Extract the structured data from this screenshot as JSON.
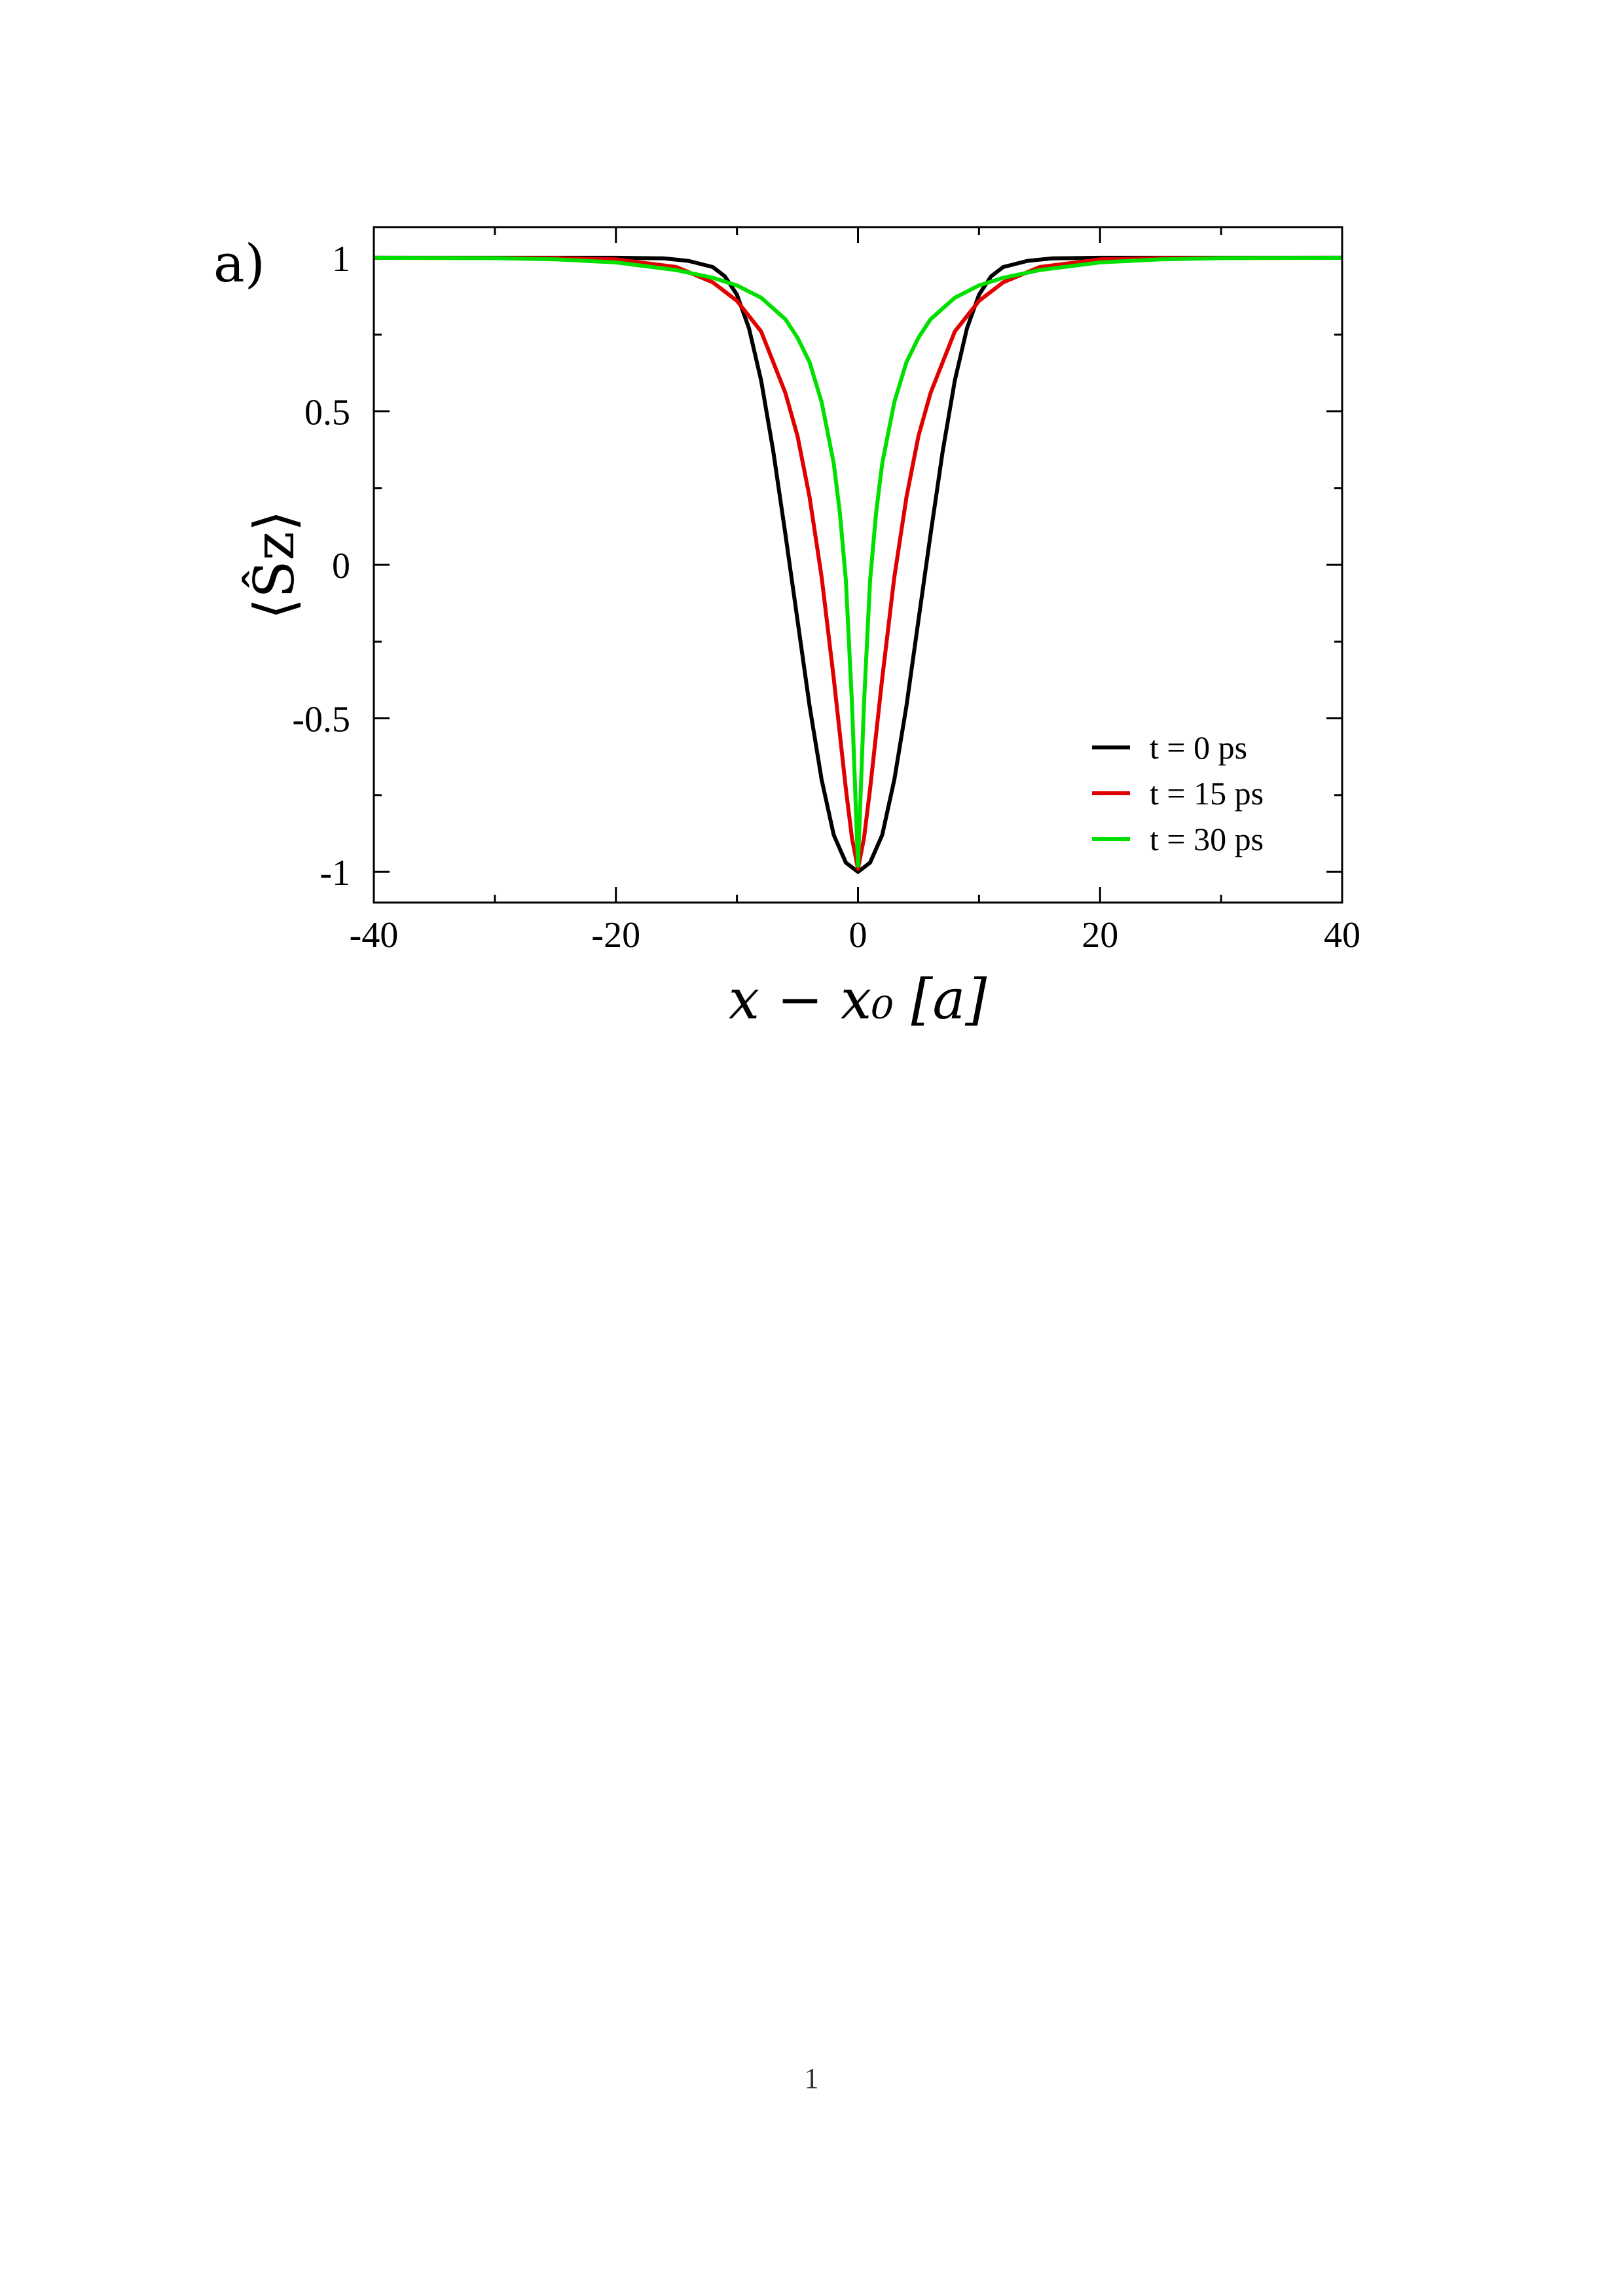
{
  "chart_data": {
    "type": "line",
    "panel_label": "a)",
    "xlabel": "x − x₀ [a]",
    "ylabel": "⟨Ŝz⟩",
    "xlim": [
      -40,
      40
    ],
    "ylim": [
      -1.1,
      1.1
    ],
    "xticks": [
      -40,
      -20,
      0,
      20,
      40
    ],
    "yticks": [
      -1,
      -0.5,
      0,
      0.5,
      1
    ],
    "xtick_labels": [
      "-40",
      "-20",
      "0",
      "20",
      "40"
    ],
    "ytick_labels": [
      "-1",
      "-0.5",
      "0",
      "0.5",
      "1"
    ],
    "legend_position": "lower-right",
    "grid": false,
    "series": [
      {
        "name": "t = 0 ps",
        "color": "#000000",
        "x": [
          -40,
          -25,
          -20,
          -16,
          -14,
          -12,
          -11,
          -10,
          -9,
          -8,
          -7,
          -6,
          -5,
          -4,
          -3,
          -2,
          -1,
          0,
          1,
          2,
          3,
          4,
          5,
          6,
          7,
          8,
          9,
          10,
          11,
          12,
          14,
          16,
          20,
          25,
          40
        ],
        "y": [
          1,
          1,
          1,
          0.998,
          0.99,
          0.97,
          0.94,
          0.88,
          0.77,
          0.6,
          0.37,
          0.1,
          -0.18,
          -0.46,
          -0.7,
          -0.88,
          -0.97,
          -1,
          -0.97,
          -0.88,
          -0.7,
          -0.46,
          -0.18,
          0.1,
          0.37,
          0.6,
          0.77,
          0.88,
          0.94,
          0.97,
          0.99,
          0.998,
          1,
          1,
          1
        ]
      },
      {
        "name": "t = 15 ps",
        "color": "#e00000",
        "x": [
          -40,
          -25,
          -20,
          -15,
          -12,
          -10,
          -8,
          -6,
          -5,
          -4,
          -3,
          -2,
          -1,
          -0.5,
          0,
          0.5,
          1,
          2,
          3,
          4,
          5,
          6,
          8,
          10,
          12,
          15,
          20,
          25,
          40
        ],
        "y": [
          1,
          0.999,
          0.995,
          0.97,
          0.92,
          0.86,
          0.76,
          0.56,
          0.42,
          0.22,
          -0.04,
          -0.37,
          -0.73,
          -0.89,
          -0.99,
          -0.89,
          -0.73,
          -0.37,
          -0.04,
          0.22,
          0.42,
          0.56,
          0.76,
          0.86,
          0.92,
          0.97,
          0.995,
          0.999,
          1
        ]
      },
      {
        "name": "t = 30 ps",
        "color": "#00e000",
        "x": [
          -40,
          -30,
          -25,
          -20,
          -15,
          -12,
          -10,
          -8,
          -6,
          -5,
          -4,
          -3,
          -2,
          -1.5,
          -1,
          -0.5,
          0,
          0.5,
          1,
          1.5,
          2,
          3,
          4,
          5,
          6,
          8,
          10,
          12,
          15,
          20,
          25,
          30,
          40
        ],
        "y": [
          1,
          0.999,
          0.995,
          0.985,
          0.96,
          0.935,
          0.91,
          0.87,
          0.8,
          0.74,
          0.66,
          0.53,
          0.33,
          0.17,
          -0.05,
          -0.45,
          -0.98,
          -0.45,
          -0.05,
          0.17,
          0.33,
          0.53,
          0.66,
          0.74,
          0.8,
          0.87,
          0.91,
          0.935,
          0.96,
          0.985,
          0.995,
          0.999,
          1
        ]
      }
    ]
  },
  "page": {
    "number": "1"
  }
}
